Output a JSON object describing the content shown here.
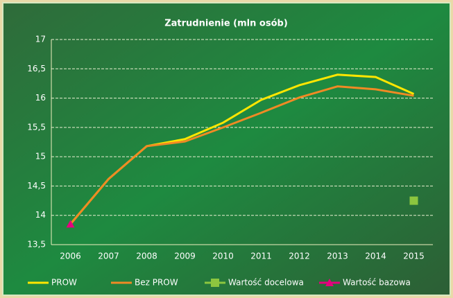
{
  "chart_data": {
    "type": "line",
    "title": "Zatrudnienie (mln osób)",
    "categories": [
      "2006",
      "2007",
      "2008",
      "2009",
      "2010",
      "2011",
      "2012",
      "2013",
      "2014",
      "2015"
    ],
    "series": [
      {
        "name": "PROW",
        "color": "#ffe600",
        "marker": "none",
        "values": [
          13.85,
          14.62,
          15.18,
          15.3,
          15.58,
          15.97,
          16.22,
          16.4,
          16.36,
          16.07
        ]
      },
      {
        "name": "Bez PROW",
        "color": "#f08a24",
        "marker": "none",
        "values": [
          13.85,
          14.62,
          15.18,
          15.26,
          15.5,
          15.75,
          16.01,
          16.2,
          16.15,
          16.04
        ]
      },
      {
        "name": "Wartość docelowa",
        "color": "#8cc63f",
        "marker": "square",
        "values": [
          null,
          null,
          null,
          null,
          null,
          null,
          null,
          null,
          null,
          14.25
        ]
      },
      {
        "name": "Wartość bazowa",
        "color": "#e6007e",
        "marker": "triangle",
        "values": [
          13.85,
          null,
          null,
          null,
          null,
          null,
          null,
          null,
          null,
          null
        ]
      }
    ],
    "ylim": [
      13.5,
      17
    ],
    "yticks": [
      {
        "value": 13.5,
        "label": "13,5"
      },
      14,
      {
        "value": 14.5,
        "label": "14,5"
      },
      15,
      {
        "value": 15.5,
        "label": "15,5"
      },
      16,
      {
        "value": 16.5,
        "label": "16,5"
      },
      17
    ],
    "grid": true,
    "legend": "bottom"
  }
}
